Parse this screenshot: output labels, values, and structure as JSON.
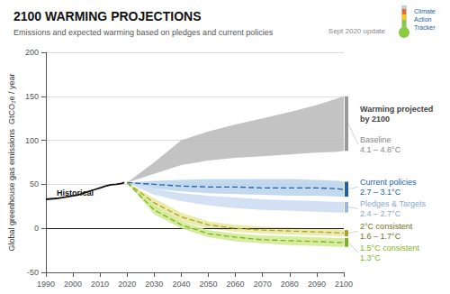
{
  "chart_data": {
    "type": "line",
    "title": "2100 WARMING PROJECTIONS",
    "subtitle": "Emissions and expected warming based on pledges and current policies",
    "ylabel": "Global greenhouse gas emissions  GtCO₂e / year",
    "watermark": "Sept 2020 update",
    "logo_text": "Climate\nAction\nTracker",
    "xlim": [
      1990,
      2100
    ],
    "xticks": [
      1990,
      2000,
      2010,
      2020,
      2030,
      2040,
      2050,
      2060,
      2070,
      2080,
      2090,
      2100
    ],
    "ylim": [
      -50,
      200
    ],
    "yticks": [
      -50,
      0,
      50,
      100,
      150,
      200
    ],
    "grid": "y",
    "reference_lines": [
      {
        "y": 0,
        "color": "#000000"
      }
    ],
    "series": [
      {
        "type": "band",
        "color": "#b8b8b8",
        "x": [
          2020,
          2030,
          2040,
          2050,
          2060,
          2070,
          2080,
          2090,
          2098,
          2100
        ],
        "lower": [
          52,
          62,
          72,
          77,
          80,
          82,
          84,
          86,
          87,
          88
        ],
        "upper": [
          52,
          75,
          100,
          110,
          118,
          125,
          132,
          140,
          148,
          150
        ],
        "end_bar": {
          "x": 2100,
          "color": "#999999"
        },
        "note": {
          "text": "Baseline\n4.1 – 4.8°C",
          "x": 2102,
          "y": 95,
          "color": "#888888"
        }
      },
      {
        "type": "band",
        "color": "#b8d4eb",
        "x": [
          2020,
          2030,
          2040,
          2050,
          2060,
          2070,
          2080,
          2090,
          2098,
          2100
        ],
        "lower": [
          52,
          45,
          42,
          40,
          39,
          38,
          37,
          37,
          36,
          36
        ],
        "upper": [
          52,
          54,
          55,
          56,
          56,
          56,
          56,
          55,
          54,
          53
        ],
        "line": {
          "values": [
            52,
            50,
            48,
            47,
            47,
            46,
            46,
            46,
            45,
            44
          ],
          "color": "#2060a8",
          "line_style": "dashed"
        },
        "end_bar": {
          "x": 2100,
          "color": "#2060a8"
        },
        "note": {
          "text": "Current policies\n2.7 – 3.1°C",
          "x": 2102,
          "y": 47,
          "color": "#2060a8"
        }
      },
      {
        "type": "band",
        "color": "#ccdcf2",
        "x": [
          2020,
          2030,
          2040,
          2050,
          2060,
          2070,
          2080,
          2090,
          2098,
          2100
        ],
        "lower": [
          52,
          38,
          31,
          26,
          23,
          21,
          20,
          19,
          18,
          18
        ],
        "upper": [
          52,
          45,
          40,
          37,
          35,
          33,
          32,
          31,
          30,
          30
        ],
        "end_bar": {
          "x": 2100,
          "color": "#a0b8d8"
        },
        "note": {
          "text": "Pledges & Targets\n2.4 – 2.7°C",
          "x": 2102,
          "y": 23,
          "color": "#8aaad0"
        }
      },
      {
        "type": "band",
        "color": "#e8e8a0",
        "x": [
          2020,
          2030,
          2040,
          2050,
          2060,
          2070,
          2080,
          2090,
          2098,
          2100
        ],
        "lower": [
          52,
          24,
          8,
          0,
          -4,
          -6,
          -7,
          -8,
          -9,
          -9
        ],
        "upper": [
          52,
          34,
          18,
          8,
          4,
          2,
          1,
          0,
          -1,
          -2
        ],
        "line": {
          "values": [
            52,
            29,
            13,
            4,
            0,
            -2,
            -3,
            -4,
            -5,
            -5.5
          ],
          "color": "#a8a820",
          "line_style": "dashed"
        },
        "end_bar": {
          "x": 2100,
          "color": "#a8a820"
        },
        "note": {
          "text": "2°C consistent\n1.6 – 1.7°C",
          "x": 2102,
          "y": -3,
          "color": "#707020"
        }
      },
      {
        "type": "band",
        "color": "#d0e890",
        "x": [
          2020,
          2030,
          2040,
          2050,
          2060,
          2070,
          2080,
          2090,
          2098,
          2100
        ],
        "lower": [
          52,
          16,
          0,
          -10,
          -15,
          -17,
          -19,
          -20,
          -21,
          -21
        ],
        "upper": [
          52,
          26,
          8,
          -2,
          -6,
          -8,
          -9,
          -10,
          -11,
          -11
        ],
        "line": {
          "values": [
            52,
            21,
            4,
            -6,
            -10,
            -13,
            -14,
            -15,
            -16,
            -16
          ],
          "color": "#78b818",
          "line_style": "dashed"
        },
        "end_bar": {
          "x": 2100,
          "color": "#78b818"
        },
        "note": {
          "text": "1.5°C consistent\n1.3°C",
          "x": 2102,
          "y": -16,
          "color": "#78b818"
        }
      },
      {
        "type": "line",
        "color": "#111111",
        "x": [
          1990,
          1992,
          1994,
          1996,
          1998,
          2000,
          2002,
          2004,
          2006,
          2008,
          2010,
          2012,
          2014,
          2016,
          2018,
          2019
        ],
        "values": [
          33,
          33.5,
          34,
          35,
          36,
          37,
          38,
          40,
          42,
          44,
          46,
          48,
          49.5,
          50,
          51,
          52
        ]
      }
    ],
    "notes_header": {
      "text": "Warming projected\nby 2100",
      "x": 2102,
      "y": 130,
      "color": "#444444"
    },
    "annotations": [
      {
        "text": "Historical",
        "x": 1994,
        "y": 36,
        "color": "#111111"
      }
    ]
  }
}
